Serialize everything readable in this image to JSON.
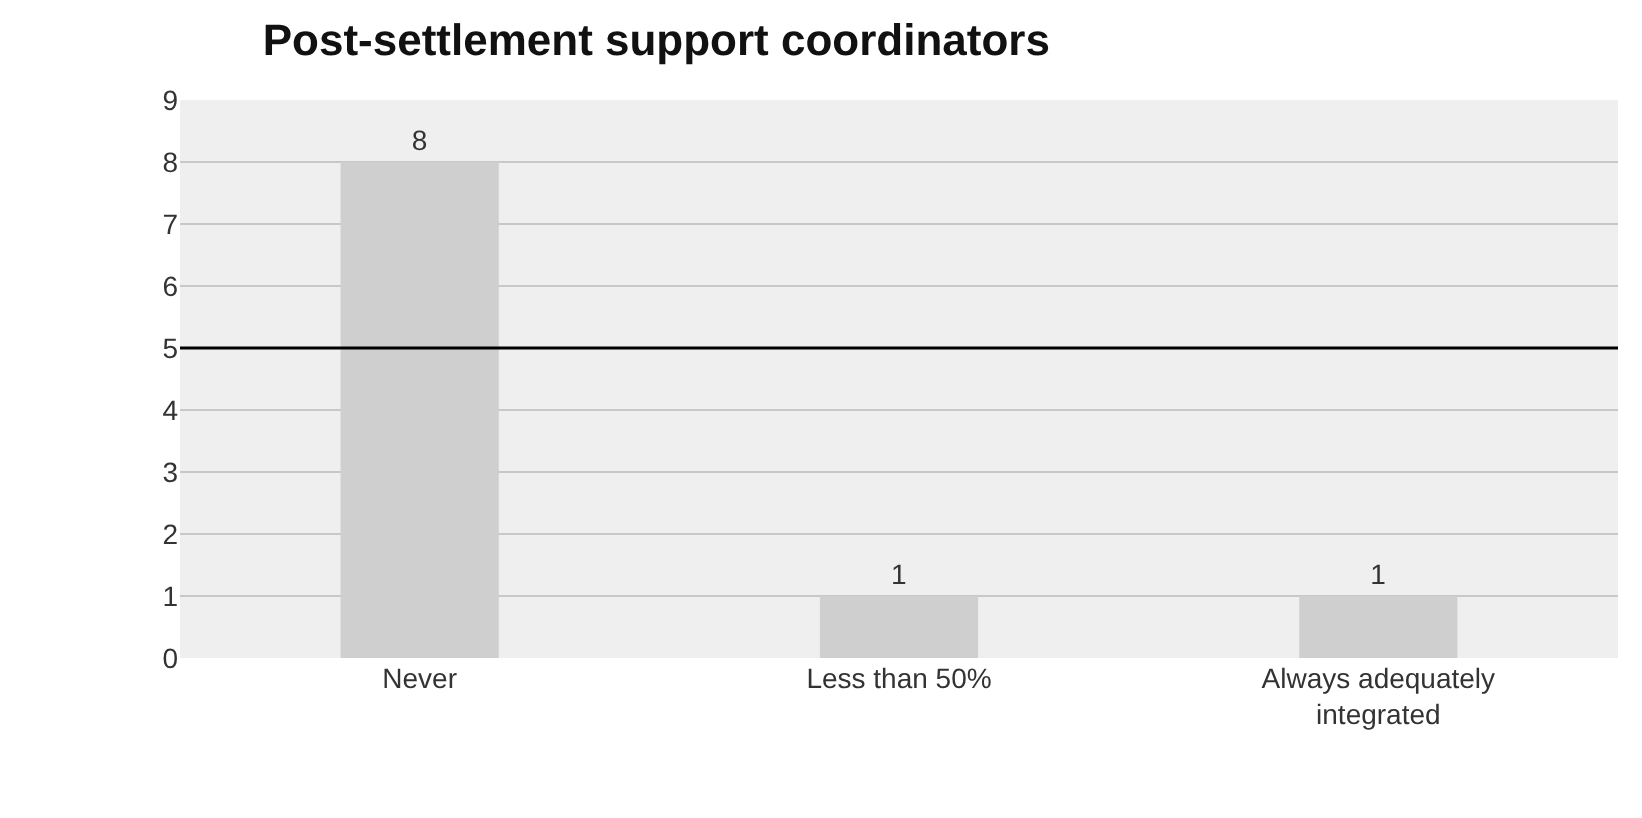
{
  "chart_data": {
    "type": "bar",
    "title": "Post-settlement support coordinators",
    "categories": [
      "Never",
      "Less than 50%",
      "Always adequately integrated"
    ],
    "values": [
      8,
      1,
      1
    ],
    "color": "#cfcfcf",
    "ylim": [
      0,
      9
    ],
    "yticks": [
      0,
      1,
      2,
      3,
      4,
      5,
      6,
      7,
      8,
      9
    ],
    "grid": "y",
    "data_labels": true,
    "ref_lines": [
      {
        "axis": "y",
        "value": 5,
        "color": "#000000"
      }
    ]
  }
}
